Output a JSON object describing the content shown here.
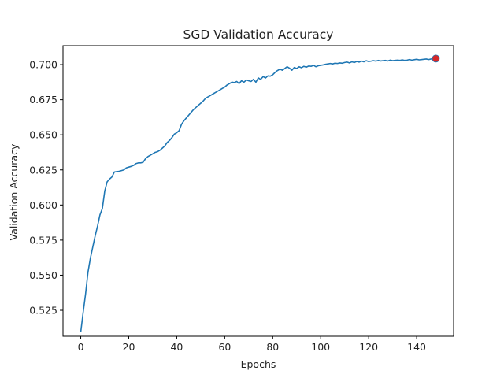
{
  "chart_data": {
    "type": "line",
    "title": "SGD Validation Accuracy",
    "xlabel": "Epochs",
    "ylabel": "Validation Accuracy",
    "xlim": [
      -7.4,
      155.4
    ],
    "ylim": [
      0.5065,
      0.7135
    ],
    "x_ticks": [
      "0",
      "20",
      "40",
      "60",
      "80",
      "100",
      "120",
      "140"
    ],
    "y_ticks": [
      "0.525",
      "0.550",
      "0.575",
      "0.600",
      "0.625",
      "0.650",
      "0.675",
      "0.700"
    ],
    "grid": false,
    "line_color": "#1f77b4",
    "marker_color": "#d62728",
    "highlight_point": {
      "x": 148,
      "y": 0.7043
    },
    "series": [
      {
        "x": [
          0,
          1,
          2,
          3,
          4,
          5,
          6,
          7,
          8,
          9,
          10,
          11,
          12,
          13,
          14,
          15,
          16,
          17,
          18,
          19,
          20,
          21,
          22,
          23,
          24,
          25,
          26,
          27,
          28,
          29,
          30,
          31,
          32,
          33,
          34,
          35,
          36,
          37,
          38,
          39,
          40,
          41,
          42,
          43,
          44,
          45,
          46,
          47,
          48,
          49,
          50,
          51,
          52,
          53,
          54,
          55,
          56,
          57,
          58,
          59,
          60,
          61,
          62,
          63,
          64,
          65,
          66,
          67,
          68,
          69,
          70,
          71,
          72,
          73,
          74,
          75,
          76,
          77,
          78,
          79,
          80,
          81,
          82,
          83,
          84,
          85,
          86,
          87,
          88,
          89,
          90,
          91,
          92,
          93,
          94,
          95,
          96,
          97,
          98,
          99,
          100,
          101,
          102,
          103,
          104,
          105,
          106,
          107,
          108,
          109,
          110,
          111,
          112,
          113,
          114,
          115,
          116,
          117,
          118,
          119,
          120,
          121,
          122,
          123,
          124,
          125,
          126,
          127,
          128,
          129,
          130,
          131,
          132,
          133,
          134,
          135,
          136,
          137,
          138,
          139,
          140,
          141,
          142,
          143,
          144,
          145,
          146,
          147,
          148
        ],
        "values": [
          0.5095,
          0.5235,
          0.5365,
          0.552,
          0.562,
          0.57,
          0.578,
          0.585,
          0.593,
          0.5975,
          0.61,
          0.6165,
          0.6185,
          0.62,
          0.6235,
          0.6238,
          0.624,
          0.6245,
          0.625,
          0.6265,
          0.627,
          0.6275,
          0.6282,
          0.6295,
          0.63,
          0.63,
          0.6305,
          0.633,
          0.6345,
          0.6355,
          0.6365,
          0.6375,
          0.638,
          0.639,
          0.6405,
          0.642,
          0.6445,
          0.646,
          0.648,
          0.6505,
          0.6515,
          0.653,
          0.6575,
          0.66,
          0.662,
          0.664,
          0.666,
          0.668,
          0.6695,
          0.671,
          0.6725,
          0.674,
          0.676,
          0.677,
          0.678,
          0.679,
          0.68,
          0.681,
          0.682,
          0.683,
          0.684,
          0.6855,
          0.6865,
          0.6875,
          0.6872,
          0.688,
          0.6865,
          0.6885,
          0.6875,
          0.689,
          0.6885,
          0.688,
          0.6895,
          0.6875,
          0.6905,
          0.6895,
          0.6915,
          0.6905,
          0.692,
          0.6918,
          0.6928,
          0.6945,
          0.6958,
          0.6968,
          0.696,
          0.6972,
          0.6985,
          0.6975,
          0.696,
          0.698,
          0.6972,
          0.6985,
          0.6978,
          0.6988,
          0.6982,
          0.699,
          0.6988,
          0.6995,
          0.6985,
          0.6992,
          0.6995,
          0.6998,
          0.7002,
          0.7005,
          0.7008,
          0.7005,
          0.701,
          0.7008,
          0.7012,
          0.701,
          0.7015,
          0.7018,
          0.7012,
          0.702,
          0.7015,
          0.7022,
          0.7018,
          0.7025,
          0.702,
          0.7028,
          0.7022,
          0.7025,
          0.7028,
          0.7025,
          0.703,
          0.7026,
          0.7028,
          0.703,
          0.7026,
          0.7032,
          0.7028,
          0.703,
          0.7032,
          0.703,
          0.7034,
          0.703,
          0.7032,
          0.7036,
          0.7032,
          0.7035,
          0.7038,
          0.7034,
          0.7036,
          0.7038,
          0.704,
          0.7036,
          0.704,
          0.7042,
          0.7043
        ]
      }
    ]
  }
}
